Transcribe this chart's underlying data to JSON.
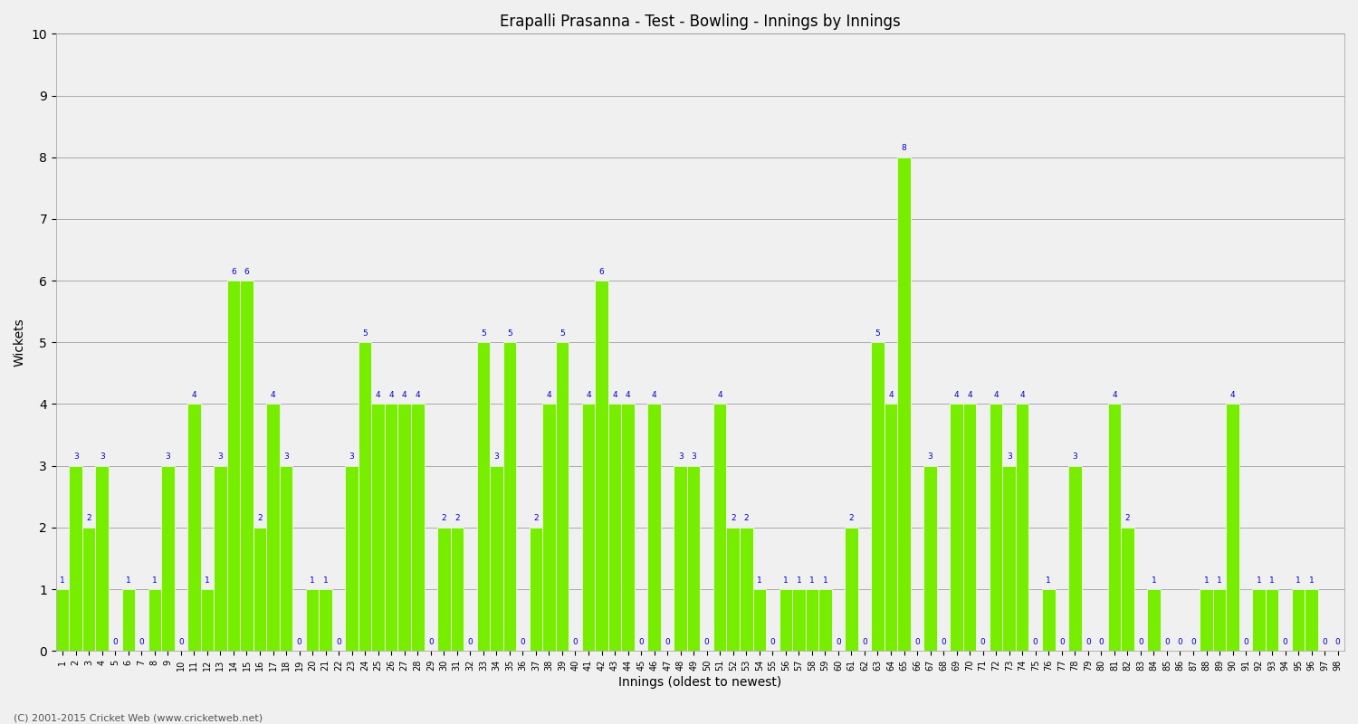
{
  "title": "Erapalli Prasanna - Test - Bowling - Innings by Innings",
  "xlabel": "Innings (oldest to newest)",
  "ylabel": "Wickets",
  "ylim": [
    0,
    10
  ],
  "yticks": [
    0,
    1,
    2,
    3,
    4,
    5,
    6,
    7,
    8,
    9,
    10
  ],
  "bar_color": "#77ee00",
  "label_color": "#0000cc",
  "background_color": "#f0f0f0",
  "plot_bg_color": "#f0f0f0",
  "footer": "(C) 2001-2015 Cricket Web (www.cricketweb.net)",
  "innings_labels": [
    "1",
    "2",
    "3",
    "4",
    "5",
    "6",
    "7",
    "8",
    "9",
    "10",
    "11",
    "12",
    "13",
    "14",
    "15",
    "16",
    "17",
    "18",
    "19",
    "20",
    "21",
    "22",
    "23",
    "24",
    "25",
    "26",
    "27",
    "28",
    "29",
    "30",
    "31",
    "32",
    "33",
    "34",
    "35",
    "36",
    "37",
    "38",
    "39",
    "40",
    "41",
    "42",
    "43",
    "44",
    "45",
    "46",
    "47",
    "48",
    "49",
    "50",
    "51",
    "52",
    "53",
    "54",
    "55",
    "56",
    "57",
    "58",
    "59",
    "60",
    "61",
    "62",
    "63",
    "64",
    "65",
    "66",
    "67",
    "68",
    "69",
    "70",
    "71",
    "72",
    "73",
    "74",
    "75",
    "76",
    "77",
    "78",
    "79",
    "80",
    "81",
    "82",
    "83",
    "84",
    "85",
    "86",
    "87",
    "88",
    "89",
    "90",
    "91",
    "92",
    "93",
    "94",
    "95",
    "96",
    "97",
    "98"
  ],
  "values": [
    1,
    3,
    2,
    3,
    0,
    1,
    0,
    1,
    3,
    0,
    4,
    1,
    3,
    6,
    6,
    2,
    4,
    3,
    0,
    1,
    1,
    0,
    3,
    5,
    4,
    4,
    4,
    4,
    0,
    2,
    2,
    0,
    5,
    3,
    5,
    0,
    2,
    4,
    5,
    0,
    4,
    6,
    4,
    4,
    0,
    4,
    0,
    3,
    3,
    0,
    4,
    2,
    2,
    1,
    0,
    1,
    1,
    1,
    1,
    0,
    2,
    0,
    5,
    4,
    8,
    0,
    3,
    0,
    4,
    4,
    0,
    4,
    3,
    4,
    0,
    1,
    0,
    3,
    0,
    0,
    4,
    2,
    0,
    1,
    0,
    0,
    0,
    1,
    1,
    4,
    0,
    1,
    1,
    0,
    1,
    1,
    0,
    0
  ]
}
